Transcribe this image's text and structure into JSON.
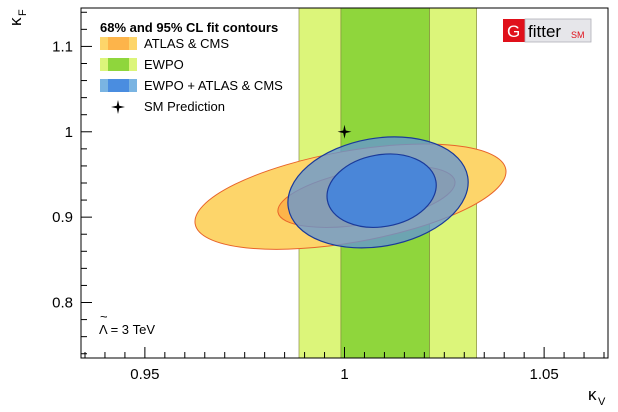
{
  "chart_data": {
    "type": "contour",
    "xlabel": "κ",
    "xlabel_sub": "V",
    "ylabel": "κ",
    "ylabel_sub": "F",
    "xlim": [
      0.934,
      1.066
    ],
    "ylim": [
      0.735,
      1.145
    ],
    "xticks": [
      {
        "value": 0.95,
        "label": "0.95"
      },
      {
        "value": 1.0,
        "label": "1"
      },
      {
        "value": 1.05,
        "label": "1.05"
      }
    ],
    "yticks": [
      {
        "value": 0.8,
        "label": "0.8"
      },
      {
        "value": 0.9,
        "label": "0.9"
      },
      {
        "value": 1.0,
        "label": "1"
      },
      {
        "value": 1.1,
        "label": "1.1"
      }
    ],
    "legend": {
      "title": "68% and 95% CL fit contours",
      "placement": "top-left",
      "entries": [
        {
          "label": "ATLAS & CMS",
          "color_outer": "#fdd56a",
          "color_inner": "#fdb44a"
        },
        {
          "label": "EWPO",
          "color_outer": "#dcf57a",
          "color_inner": "#8fd63c"
        },
        {
          "label": "EWPO + ATLAS & CMS",
          "color_outer": "#7ab4e2",
          "color_inner": "#4a8de0"
        },
        {
          "label": "SM Prediction",
          "marker": "star"
        }
      ]
    },
    "annotation": "Λ = 3 TeV",
    "annotation_symbol": "~",
    "series": [
      {
        "name": "EWPO",
        "kind": "vertical-band",
        "cl95": [
          0.9886,
          1.0331
        ],
        "cl68": [
          0.9991,
          1.0213
        ],
        "fill_95": "#dcf57a",
        "fill_68": "#8fd63c",
        "stroke": "#7a7a3a"
      },
      {
        "name": "ATLAS & CMS",
        "kind": "ellipse",
        "cl95": {
          "center": [
            1.0015,
            0.924
          ],
          "rx": 0.0395,
          "ry": 0.0535,
          "angle": 10
        },
        "cl68": {
          "center": [
            1.0055,
            0.924
          ],
          "rx": 0.0225,
          "ry": 0.0315,
          "angle": 10
        },
        "fill_95": "#fdd56a",
        "fill_68": "#fdb44a",
        "stroke": "#e8642a"
      },
      {
        "name": "EWPO + ATLAS & CMS",
        "kind": "ellipse",
        "cl95": {
          "center": [
            1.0084,
            0.929
          ],
          "rx": 0.0228,
          "ry": 0.0633,
          "angle": 10
        },
        "cl68": {
          "center": [
            1.0093,
            0.931
          ],
          "rx": 0.0138,
          "ry": 0.0421,
          "angle": 10
        },
        "fill_95": "rgba(100,150,210,0.78)",
        "fill_68": "#4a86d8",
        "stroke": "#1a3a9a"
      },
      {
        "name": "SM Prediction",
        "kind": "point",
        "x": 1.0,
        "y": 1.0
      }
    ]
  },
  "logo": {
    "letter": "G",
    "word": "fitter",
    "suffix": "SM"
  }
}
